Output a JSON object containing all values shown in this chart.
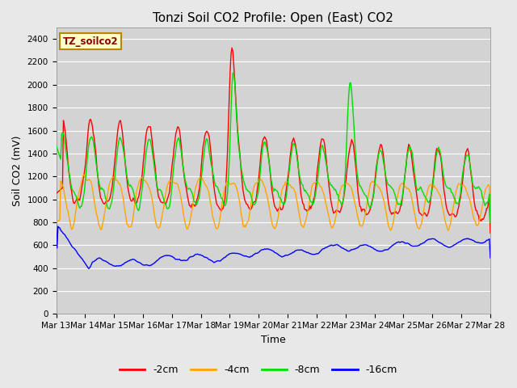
{
  "title": "Tonzi Soil CO2 Profile: Open (East) CO2",
  "ylabel": "Soil CO2 (mV)",
  "xlabel": "Time",
  "annotation": "TZ_soilco2",
  "ylim": [
    0,
    2500
  ],
  "yticks": [
    0,
    200,
    400,
    600,
    800,
    1000,
    1200,
    1400,
    1600,
    1800,
    2000,
    2200,
    2400
  ],
  "xtick_labels": [
    "Mar 13",
    "Mar 14",
    "Mar 15",
    "Mar 16",
    "Mar 17",
    "Mar 18",
    "Mar 19",
    "Mar 20",
    "Mar 21",
    "Mar 22",
    "Mar 23",
    "Mar 24",
    "Mar 25",
    "Mar 26",
    "Mar 27",
    "Mar 28"
  ],
  "colors": {
    "-2cm": "#ff0000",
    "-4cm": "#ffa500",
    "-8cm": "#00dd00",
    "-16cm": "#0000ff"
  },
  "fig_bg_color": "#e8e8e8",
  "plot_bg_color": "#d3d3d3",
  "legend_labels": [
    "-2cm",
    "-4cm",
    "-8cm",
    "-16cm"
  ],
  "title_fontsize": 11,
  "axis_label_fontsize": 9,
  "tick_fontsize": 7.5
}
